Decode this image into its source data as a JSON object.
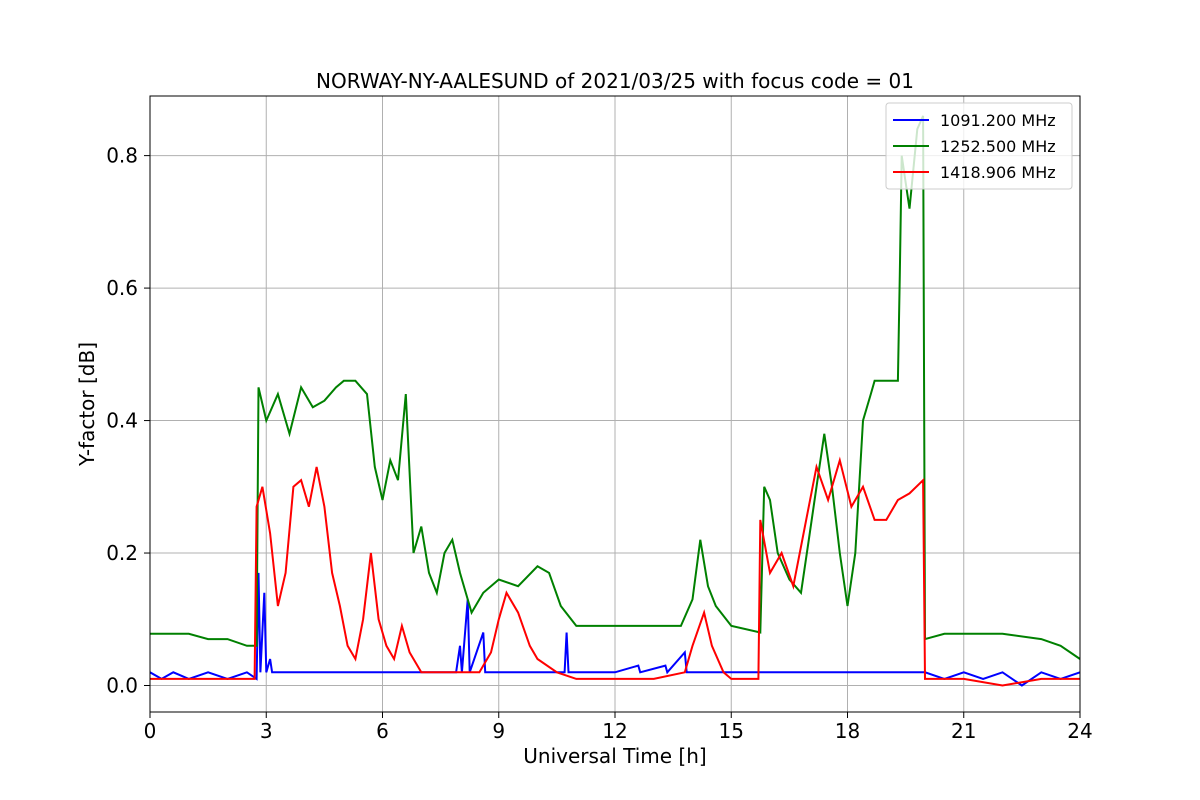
{
  "chart_data": {
    "type": "line",
    "title": "NORWAY-NY-AALESUND of 2021/03/25 with focus code = 01",
    "xlabel": "Universal Time [h]",
    "ylabel": "Y-factor [dB]",
    "xlim": [
      0,
      24
    ],
    "ylim": [
      -0.04,
      0.89
    ],
    "xticks": [
      0,
      3,
      6,
      9,
      12,
      15,
      18,
      21,
      24
    ],
    "yticks": [
      0.0,
      0.2,
      0.4,
      0.6,
      0.8
    ],
    "xtick_labels": [
      "0",
      "3",
      "6",
      "9",
      "12",
      "15",
      "18",
      "21",
      "24"
    ],
    "ytick_labels": [
      "0.0",
      "0.2",
      "0.4",
      "0.6",
      "0.8"
    ],
    "grid": true,
    "legend_position": "top-right",
    "series": [
      {
        "name": "1091.200 MHz",
        "color": "#0000ff",
        "points": [
          [
            0,
            0.02
          ],
          [
            0.3,
            0.01
          ],
          [
            0.6,
            0.02
          ],
          [
            1.0,
            0.01
          ],
          [
            1.5,
            0.02
          ],
          [
            2.0,
            0.01
          ],
          [
            2.5,
            0.02
          ],
          [
            2.75,
            0.01
          ],
          [
            2.8,
            0.17
          ],
          [
            2.85,
            0.02
          ],
          [
            2.95,
            0.14
          ],
          [
            3.0,
            0.02
          ],
          [
            3.1,
            0.04
          ],
          [
            3.15,
            0.02
          ],
          [
            5.0,
            0.02
          ],
          [
            7.9,
            0.02
          ],
          [
            8.0,
            0.06
          ],
          [
            8.05,
            0.02
          ],
          [
            8.2,
            0.13
          ],
          [
            8.25,
            0.02
          ],
          [
            8.6,
            0.08
          ],
          [
            8.65,
            0.02
          ],
          [
            10.7,
            0.02
          ],
          [
            10.75,
            0.08
          ],
          [
            10.8,
            0.02
          ],
          [
            12.0,
            0.02
          ],
          [
            12.6,
            0.03
          ],
          [
            12.65,
            0.02
          ],
          [
            13.3,
            0.03
          ],
          [
            13.35,
            0.02
          ],
          [
            13.8,
            0.05
          ],
          [
            13.85,
            0.02
          ],
          [
            15.0,
            0.02
          ],
          [
            18.0,
            0.02
          ],
          [
            20.0,
            0.02
          ],
          [
            20.5,
            0.01
          ],
          [
            21.0,
            0.02
          ],
          [
            21.5,
            0.01
          ],
          [
            22.0,
            0.02
          ],
          [
            22.5,
            0.0
          ],
          [
            23.0,
            0.02
          ],
          [
            23.5,
            0.01
          ],
          [
            24.0,
            0.02
          ]
        ]
      },
      {
        "name": "1252.500 MHz",
        "color": "#008000",
        "points": [
          [
            0,
            0.078
          ],
          [
            1.0,
            0.078
          ],
          [
            1.5,
            0.07
          ],
          [
            2.0,
            0.07
          ],
          [
            2.5,
            0.06
          ],
          [
            2.75,
            0.06
          ],
          [
            2.8,
            0.45
          ],
          [
            3.0,
            0.4
          ],
          [
            3.3,
            0.44
          ],
          [
            3.6,
            0.38
          ],
          [
            3.9,
            0.45
          ],
          [
            4.2,
            0.42
          ],
          [
            4.5,
            0.43
          ],
          [
            4.8,
            0.45
          ],
          [
            5.0,
            0.46
          ],
          [
            5.3,
            0.46
          ],
          [
            5.6,
            0.44
          ],
          [
            5.8,
            0.33
          ],
          [
            6.0,
            0.28
          ],
          [
            6.2,
            0.34
          ],
          [
            6.4,
            0.31
          ],
          [
            6.6,
            0.44
          ],
          [
            6.8,
            0.2
          ],
          [
            7.0,
            0.24
          ],
          [
            7.2,
            0.17
          ],
          [
            7.4,
            0.14
          ],
          [
            7.6,
            0.2
          ],
          [
            7.8,
            0.22
          ],
          [
            8.0,
            0.17
          ],
          [
            8.3,
            0.11
          ],
          [
            8.6,
            0.14
          ],
          [
            9.0,
            0.16
          ],
          [
            9.5,
            0.15
          ],
          [
            10.0,
            0.18
          ],
          [
            10.3,
            0.17
          ],
          [
            10.6,
            0.12
          ],
          [
            11.0,
            0.09
          ],
          [
            12.0,
            0.09
          ],
          [
            13.0,
            0.09
          ],
          [
            13.7,
            0.09
          ],
          [
            14.0,
            0.13
          ],
          [
            14.2,
            0.22
          ],
          [
            14.4,
            0.15
          ],
          [
            14.6,
            0.12
          ],
          [
            15.0,
            0.09
          ],
          [
            15.75,
            0.08
          ],
          [
            15.85,
            0.3
          ],
          [
            16.0,
            0.28
          ],
          [
            16.2,
            0.2
          ],
          [
            16.5,
            0.16
          ],
          [
            16.8,
            0.14
          ],
          [
            17.0,
            0.22
          ],
          [
            17.2,
            0.3
          ],
          [
            17.4,
            0.38
          ],
          [
            17.6,
            0.3
          ],
          [
            17.8,
            0.2
          ],
          [
            18.0,
            0.12
          ],
          [
            18.2,
            0.2
          ],
          [
            18.4,
            0.4
          ],
          [
            18.6,
            0.44
          ],
          [
            18.7,
            0.46
          ],
          [
            19.3,
            0.46
          ],
          [
            19.35,
            0.62
          ],
          [
            19.4,
            0.8
          ],
          [
            19.6,
            0.72
          ],
          [
            19.8,
            0.84
          ],
          [
            19.95,
            0.86
          ],
          [
            20.0,
            0.07
          ],
          [
            20.5,
            0.078
          ],
          [
            21.0,
            0.078
          ],
          [
            22.0,
            0.078
          ],
          [
            23.0,
            0.07
          ],
          [
            23.5,
            0.06
          ],
          [
            24.0,
            0.04
          ]
        ]
      },
      {
        "name": "1418.906 MHz",
        "color": "#ff0000",
        "points": [
          [
            0,
            0.01
          ],
          [
            2.7,
            0.01
          ],
          [
            2.75,
            0.27
          ],
          [
            2.9,
            0.3
          ],
          [
            3.1,
            0.23
          ],
          [
            3.3,
            0.12
          ],
          [
            3.5,
            0.17
          ],
          [
            3.7,
            0.3
          ],
          [
            3.9,
            0.31
          ],
          [
            4.1,
            0.27
          ],
          [
            4.3,
            0.33
          ],
          [
            4.5,
            0.27
          ],
          [
            4.7,
            0.17
          ],
          [
            4.9,
            0.12
          ],
          [
            5.1,
            0.06
          ],
          [
            5.3,
            0.04
          ],
          [
            5.5,
            0.1
          ],
          [
            5.7,
            0.2
          ],
          [
            5.9,
            0.1
          ],
          [
            6.1,
            0.06
          ],
          [
            6.3,
            0.04
          ],
          [
            6.5,
            0.09
          ],
          [
            6.7,
            0.05
          ],
          [
            7.0,
            0.02
          ],
          [
            7.5,
            0.02
          ],
          [
            8.0,
            0.02
          ],
          [
            8.5,
            0.02
          ],
          [
            8.8,
            0.05
          ],
          [
            9.0,
            0.1
          ],
          [
            9.2,
            0.14
          ],
          [
            9.5,
            0.11
          ],
          [
            9.8,
            0.06
          ],
          [
            10.0,
            0.04
          ],
          [
            10.5,
            0.02
          ],
          [
            11.0,
            0.01
          ],
          [
            12.0,
            0.01
          ],
          [
            13.0,
            0.01
          ],
          [
            13.8,
            0.02
          ],
          [
            14.0,
            0.06
          ],
          [
            14.3,
            0.11
          ],
          [
            14.5,
            0.06
          ],
          [
            14.8,
            0.02
          ],
          [
            15.0,
            0.01
          ],
          [
            15.7,
            0.01
          ],
          [
            15.75,
            0.25
          ],
          [
            16.0,
            0.17
          ],
          [
            16.3,
            0.2
          ],
          [
            16.6,
            0.15
          ],
          [
            16.9,
            0.24
          ],
          [
            17.2,
            0.33
          ],
          [
            17.5,
            0.28
          ],
          [
            17.8,
            0.34
          ],
          [
            18.1,
            0.27
          ],
          [
            18.4,
            0.3
          ],
          [
            18.7,
            0.25
          ],
          [
            19.0,
            0.25
          ],
          [
            19.3,
            0.28
          ],
          [
            19.6,
            0.29
          ],
          [
            19.95,
            0.31
          ],
          [
            20.0,
            0.01
          ],
          [
            21.0,
            0.01
          ],
          [
            22.0,
            0.0
          ],
          [
            23.0,
            0.01
          ],
          [
            24.0,
            0.01
          ]
        ]
      }
    ]
  }
}
